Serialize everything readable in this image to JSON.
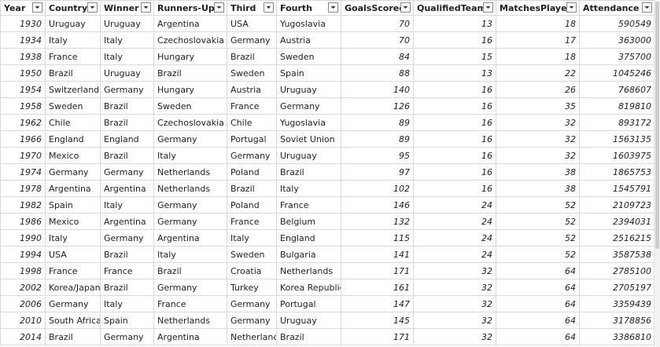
{
  "columns": [
    {
      "label": "Year",
      "align": "num"
    },
    {
      "label": "Country",
      "align": "txt"
    },
    {
      "label": "Winner",
      "align": "txt"
    },
    {
      "label": "Runners-Up",
      "align": "txt"
    },
    {
      "label": "Third",
      "align": "txt"
    },
    {
      "label": "Fourth",
      "align": "txt"
    },
    {
      "label": "GoalsScored",
      "align": "num"
    },
    {
      "label": "QualifiedTeams",
      "align": "num"
    },
    {
      "label": "MatchesPlayed",
      "align": "num"
    },
    {
      "label": "Attendance",
      "align": "num"
    }
  ],
  "rows": [
    [
      "1930",
      "Uruguay",
      "Uruguay",
      "Argentina",
      "USA",
      "Yugoslavia",
      "70",
      "13",
      "18",
      "590549"
    ],
    [
      "1934",
      "Italy",
      "Italy",
      "Czechoslovakia",
      "Germany",
      "Austria",
      "70",
      "16",
      "17",
      "363000"
    ],
    [
      "1938",
      "France",
      "Italy",
      "Hungary",
      "Brazil",
      "Sweden",
      "84",
      "15",
      "18",
      "375700"
    ],
    [
      "1950",
      "Brazil",
      "Uruguay",
      "Brazil",
      "Sweden",
      "Spain",
      "88",
      "13",
      "22",
      "1045246"
    ],
    [
      "1954",
      "Switzerland",
      "Germany",
      "Hungary",
      "Austria",
      "Uruguay",
      "140",
      "16",
      "26",
      "768607"
    ],
    [
      "1958",
      "Sweden",
      "Brazil",
      "Sweden",
      "France",
      "Germany",
      "126",
      "16",
      "35",
      "819810"
    ],
    [
      "1962",
      "Chile",
      "Brazil",
      "Czechoslovakia",
      "Chile",
      "Yugoslavia",
      "89",
      "16",
      "32",
      "893172"
    ],
    [
      "1966",
      "England",
      "England",
      "Germany",
      "Portugal",
      "Soviet Union",
      "89",
      "16",
      "32",
      "1563135"
    ],
    [
      "1970",
      "Mexico",
      "Brazil",
      "Italy",
      "Germany",
      "Uruguay",
      "95",
      "16",
      "32",
      "1603975"
    ],
    [
      "1974",
      "Germany",
      "Germany",
      "Netherlands",
      "Poland",
      "Brazil",
      "97",
      "16",
      "38",
      "1865753"
    ],
    [
      "1978",
      "Argentina",
      "Argentina",
      "Netherlands",
      "Brazil",
      "Italy",
      "102",
      "16",
      "38",
      "1545791"
    ],
    [
      "1982",
      "Spain",
      "Italy",
      "Germany",
      "Poland",
      "France",
      "146",
      "24",
      "52",
      "2109723"
    ],
    [
      "1986",
      "Mexico",
      "Argentina",
      "Germany",
      "France",
      "Belgium",
      "132",
      "24",
      "52",
      "2394031"
    ],
    [
      "1990",
      "Italy",
      "Germany",
      "Argentina",
      "Italy",
      "England",
      "115",
      "24",
      "52",
      "2516215"
    ],
    [
      "1994",
      "USA",
      "Brazil",
      "Italy",
      "Sweden",
      "Bulgaria",
      "141",
      "24",
      "52",
      "3587538"
    ],
    [
      "1998",
      "France",
      "France",
      "Brazil",
      "Croatia",
      "Netherlands",
      "171",
      "32",
      "64",
      "2785100"
    ],
    [
      "2002",
      "Korea/Japan",
      "Brazil",
      "Germany",
      "Turkey",
      "Korea Republic",
      "161",
      "32",
      "64",
      "2705197"
    ],
    [
      "2006",
      "Germany",
      "Italy",
      "France",
      "Germany",
      "Portugal",
      "147",
      "32",
      "64",
      "3359439"
    ],
    [
      "2010",
      "South Africa",
      "Spain",
      "Netherlands",
      "Germany",
      "Uruguay",
      "145",
      "32",
      "64",
      "3178856"
    ],
    [
      "2014",
      "Brazil",
      "Germany",
      "Argentina",
      "Netherlands",
      "Brazil",
      "171",
      "32",
      "64",
      "3386810"
    ]
  ],
  "icons": {
    "filter": "chevron-down-icon"
  }
}
